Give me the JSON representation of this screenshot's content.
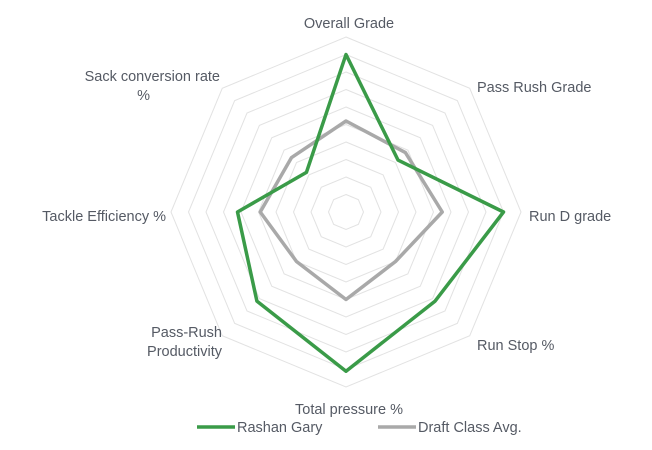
{
  "chart_data": {
    "type": "radar",
    "axes": [
      "Overall Grade",
      "Pass Rush Grade",
      "Run D grade",
      "Run Stop %",
      "Total pressure %",
      "Pass-Rush Productivity",
      "Tackle Efficiency %",
      "Sack conversion rate %"
    ],
    "scale": {
      "min": 0,
      "max": 10,
      "rings": 10
    },
    "grid": true,
    "legend_position": "bottom",
    "series": [
      {
        "name": "Rashan Gary",
        "color": "#3a9b48",
        "values": [
          9.0,
          4.2,
          9.0,
          7.2,
          9.1,
          7.2,
          6.2,
          3.2
        ]
      },
      {
        "name": "Draft Class Avg.",
        "color": "#a9a9a9",
        "values": [
          5.2,
          4.8,
          5.5,
          4.0,
          5.0,
          4.0,
          4.9,
          4.4
        ]
      }
    ]
  }
}
